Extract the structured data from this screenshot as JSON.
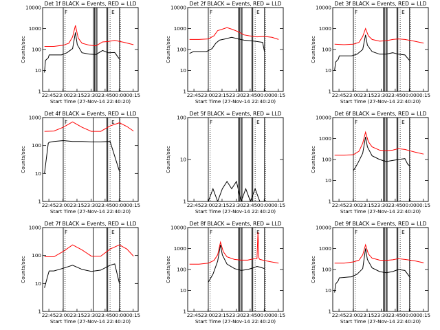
{
  "common": {
    "ylabel": "Counts/sec",
    "xlabel": "Start Time (27-Nov-14 22:40:20)",
    "x_ticks": [
      "22:45",
      "23:00",
      "23:15",
      "23:30",
      "23:45",
      "00:00",
      "00:15"
    ],
    "x_tick_minutes": [
      4.67,
      19.67,
      34.67,
      49.67,
      64.67,
      79.67,
      94.67
    ],
    "x_range_minutes": [
      -2,
      100
    ],
    "markers": [
      "F",
      "E"
    ],
    "colors": {
      "events": "#000000",
      "lld": "#ff0000"
    }
  },
  "chart_data": [
    {
      "type": "line",
      "title": "Det 1f BLACK = Events, RED = LLD",
      "yscale": "log",
      "ylim": [
        1,
        10000
      ],
      "y_ticks": [
        "1",
        "10",
        "100",
        "1000",
        "10000"
      ],
      "series": [
        {
          "name": "BLACK",
          "x": [
            0,
            1,
            4,
            5,
            18,
            24,
            30,
            33,
            35,
            40,
            48,
            55,
            62,
            68,
            75,
            80
          ],
          "y": [
            8,
            30,
            40,
            55,
            55,
            70,
            110,
            650,
            170,
            70,
            60,
            58,
            90,
            70,
            72,
            35
          ]
        },
        {
          "name": "RED",
          "x": [
            0,
            10,
            20,
            26,
            30,
            33,
            36,
            40,
            48,
            55,
            62,
            68,
            75,
            85,
            95
          ],
          "y": [
            140,
            140,
            160,
            200,
            400,
            1400,
            350,
            200,
            160,
            150,
            230,
            240,
            270,
            220,
            170
          ]
        }
      ]
    },
    {
      "type": "line",
      "title": "Det 2f BLACK = Events, RED = LLD",
      "yscale": "log",
      "ylim": [
        1,
        10000
      ],
      "y_ticks": [
        "1",
        "10",
        "100",
        "1000",
        "10000"
      ],
      "series": [
        {
          "name": "BLACK",
          "x": [
            0,
            3,
            4,
            5,
            18,
            24,
            28,
            32,
            38,
            45,
            52,
            58,
            65,
            72,
            78,
            80
          ],
          "y": [
            65,
            75,
            80,
            80,
            80,
            110,
            200,
            280,
            320,
            380,
            320,
            280,
            260,
            240,
            220,
            80
          ]
        },
        {
          "name": "RED",
          "x": [
            0,
            10,
            20,
            26,
            30,
            34,
            40,
            46,
            52,
            58,
            64,
            72,
            80,
            88,
            95
          ],
          "y": [
            300,
            300,
            320,
            450,
            800,
            900,
            1100,
            900,
            700,
            500,
            450,
            400,
            420,
            380,
            300
          ]
        }
      ]
    },
    {
      "type": "line",
      "title": "Det 3f BLACK = Events, RED = LLD",
      "yscale": "log",
      "ylim": [
        1,
        10000
      ],
      "y_ticks": [
        "1",
        "10",
        "100",
        "1000",
        "10000"
      ],
      "series": [
        {
          "name": "BLACK",
          "x": [
            0,
            1,
            4,
            5,
            18,
            24,
            30,
            33,
            35,
            40,
            48,
            55,
            62,
            68,
            75,
            80
          ],
          "y": [
            10,
            25,
            35,
            50,
            50,
            60,
            100,
            500,
            160,
            80,
            60,
            60,
            70,
            60,
            55,
            30
          ]
        },
        {
          "name": "RED",
          "x": [
            0,
            10,
            20,
            26,
            30,
            33,
            36,
            40,
            48,
            55,
            62,
            68,
            75,
            85,
            95
          ],
          "y": [
            180,
            170,
            180,
            220,
            420,
            1000,
            450,
            300,
            250,
            260,
            300,
            320,
            300,
            250,
            200
          ]
        }
      ]
    },
    {
      "type": "line",
      "title": "Det 4f BLACK = Events, RED = LLD",
      "yscale": "log",
      "ylim": [
        1,
        1000
      ],
      "y_ticks": [
        "1",
        "10",
        "100",
        "1000"
      ],
      "series": [
        {
          "name": "BLACK",
          "x": [
            0,
            4,
            5,
            10,
            20,
            30,
            40,
            50,
            60,
            70,
            80
          ],
          "y": [
            10,
            120,
            130,
            140,
            150,
            140,
            140,
            135,
            135,
            140,
            12
          ]
        },
        {
          "name": "RED",
          "x": [
            0,
            10,
            20,
            30,
            40,
            50,
            60,
            70,
            80,
            88,
            95
          ],
          "y": [
            320,
            330,
            450,
            700,
            450,
            320,
            320,
            500,
            650,
            480,
            330
          ]
        }
      ]
    },
    {
      "type": "line",
      "title": "Det 5f BLACK = Events, RED = LLD",
      "yscale": "log",
      "ylim": [
        1,
        100
      ],
      "y_ticks": [
        "1",
        "10",
        "100"
      ],
      "series": [
        {
          "name": "BLACK",
          "x": [
            20,
            25,
            30,
            35,
            40,
            45,
            50,
            55,
            60,
            65,
            70,
            75,
            80
          ],
          "y": [
            1,
            2,
            1,
            2,
            3,
            2,
            3,
            1,
            2,
            1,
            2,
            1,
            1
          ]
        }
      ]
    },
    {
      "type": "line",
      "title": "Det 6f BLACK = Events, RED = LLD",
      "yscale": "log",
      "ylim": [
        1,
        10000
      ],
      "y_ticks": [
        "1",
        "10",
        "100",
        "1000",
        "10000"
      ],
      "series": [
        {
          "name": "BLACK",
          "x": [
            20,
            22,
            25,
            30,
            33,
            35,
            40,
            48,
            55,
            62,
            68,
            75,
            78,
            80
          ],
          "y": [
            30,
            40,
            70,
            200,
            1200,
            400,
            150,
            100,
            80,
            90,
            100,
            110,
            60,
            50
          ]
        },
        {
          "name": "RED",
          "x": [
            0,
            10,
            20,
            26,
            30,
            33,
            36,
            40,
            48,
            55,
            62,
            68,
            75,
            85,
            95
          ],
          "y": [
            160,
            160,
            170,
            250,
            600,
            2000,
            700,
            400,
            280,
            260,
            280,
            330,
            300,
            230,
            180
          ]
        }
      ]
    },
    {
      "type": "line",
      "title": "Det 7f BLACK = Events, RED = LLD",
      "yscale": "log",
      "ylim": [
        1,
        1000
      ],
      "y_ticks": [
        "1",
        "10",
        "100",
        "1000"
      ],
      "series": [
        {
          "name": "BLACK",
          "x": [
            0,
            4,
            5,
            10,
            20,
            30,
            40,
            50,
            60,
            70,
            75,
            80
          ],
          "y": [
            7,
            22,
            28,
            28,
            35,
            45,
            32,
            27,
            30,
            45,
            50,
            10
          ]
        },
        {
          "name": "RED",
          "x": [
            0,
            10,
            20,
            30,
            40,
            50,
            60,
            70,
            80,
            88,
            95
          ],
          "y": [
            90,
            90,
            140,
            240,
            160,
            95,
            95,
            170,
            240,
            170,
            95
          ]
        }
      ]
    },
    {
      "type": "line",
      "title": "Det 8f BLACK = Events, RED = LLD",
      "yscale": "log",
      "ylim": [
        1,
        10000
      ],
      "y_ticks": [
        "1",
        "10",
        "100",
        "1000",
        "10000"
      ],
      "series": [
        {
          "name": "BLACK",
          "x": [
            20,
            25,
            30,
            33,
            35,
            40,
            48,
            55,
            62,
            68,
            72,
            75,
            80
          ],
          "y": [
            25,
            60,
            250,
            1500,
            500,
            180,
            110,
            90,
            100,
            120,
            140,
            130,
            110
          ]
        },
        {
          "name": "RED",
          "x": [
            0,
            10,
            20,
            26,
            30,
            33,
            36,
            40,
            48,
            55,
            62,
            68,
            72,
            73,
            74,
            75,
            85,
            95
          ],
          "y": [
            180,
            180,
            200,
            270,
            500,
            2000,
            700,
            400,
            300,
            280,
            280,
            320,
            330,
            6000,
            350,
            300,
            240,
            200
          ]
        }
      ]
    },
    {
      "type": "line",
      "title": "Det 9f BLACK = Events, RED = LLD",
      "yscale": "log",
      "ylim": [
        1,
        10000
      ],
      "y_ticks": [
        "1",
        "10",
        "100",
        "1000",
        "10000"
      ],
      "series": [
        {
          "name": "BLACK",
          "x": [
            0,
            1,
            4,
            5,
            18,
            24,
            30,
            33,
            35,
            40,
            48,
            55,
            62,
            68,
            75,
            78,
            80
          ],
          "y": [
            8,
            20,
            30,
            40,
            45,
            60,
            110,
            1000,
            300,
            120,
            80,
            70,
            80,
            100,
            90,
            60,
            45
          ]
        },
        {
          "name": "RED",
          "x": [
            0,
            10,
            20,
            26,
            30,
            33,
            36,
            40,
            48,
            55,
            62,
            68,
            75,
            85,
            95
          ],
          "y": [
            200,
            200,
            230,
            280,
            500,
            1500,
            550,
            350,
            280,
            270,
            290,
            330,
            300,
            260,
            210
          ]
        }
      ]
    }
  ]
}
